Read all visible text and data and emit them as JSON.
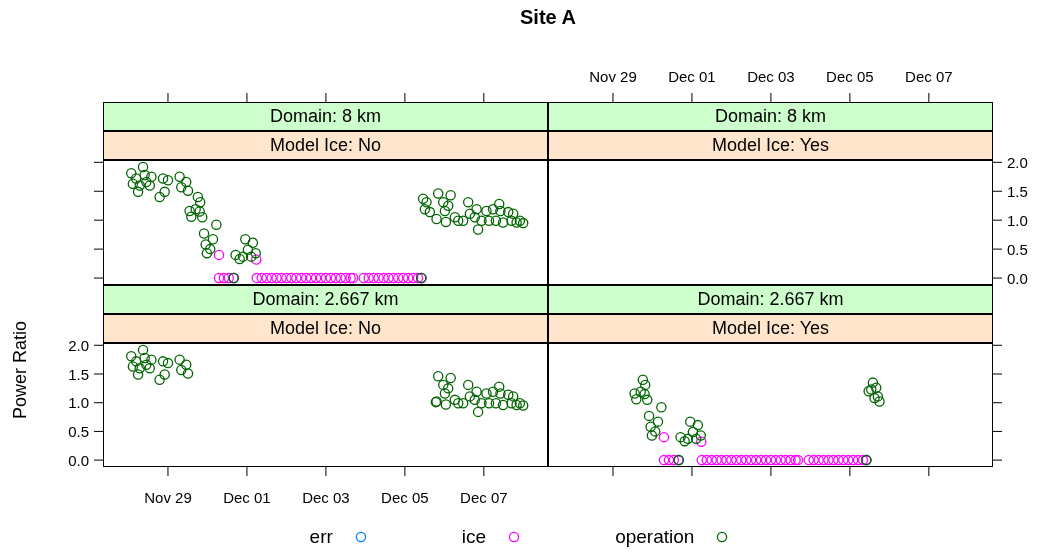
{
  "chart_data": [
    {
      "type": "scatter",
      "title": "Domain: 8 km",
      "subtitle": "Model Ice: No",
      "annotations": [
        "Site A"
      ],
      "marker": "circle",
      "tick_labels": false,
      "legend": "bottom",
      "xlim": [
        "--11-27T08:30",
        "--12-08T15:00"
      ],
      "xticks": [
        {
          "value": "--11-29",
          "label": "Nov 29"
        },
        {
          "value": "--12-01",
          "label": "Dec 01"
        },
        {
          "value": "--12-03",
          "label": "Dec 03"
        },
        {
          "value": "--12-05",
          "label": "Dec 05"
        },
        {
          "value": "--12-07",
          "label": "Dec 07"
        }
      ],
      "ylim": [
        -0.12,
        2.04
      ],
      "yticks": [
        {
          "value": 0,
          "label": "0.0"
        },
        {
          "value": 0.5,
          "label": "0.5"
        },
        {
          "value": 1,
          "label": "1.0"
        },
        {
          "value": 1.5,
          "label": "1.5"
        },
        {
          "value": 2,
          "label": "2.0"
        }
      ],
      "series": [
        {
          "name": "err",
          "color": "#0080ff",
          "x": [
            "--11-30T15:55",
            "--12-05T10:00"
          ],
          "values": [
            0,
            0
          ]
        },
        {
          "name": "ice",
          "color": "#ff00ff",
          "x": [
            "--11-30T07:00",
            "--12-01T05:40",
            "--11-30T07:00",
            "--11-30T10:00",
            "--11-30T13:00",
            "--11-30T16:00",
            "--12-01T06:00",
            "--12-01T09:00",
            "--12-01T12:00",
            "--12-01T15:00",
            "--12-01T18:00",
            "--12-01T21:00",
            "--12-02T00:00",
            "--12-02T03:00",
            "--12-02T06:00",
            "--12-02T09:00",
            "--12-02T12:00",
            "--12-02T15:00",
            "--12-02T18:00",
            "--12-02T21:00",
            "--12-03T00:00",
            "--12-03T03:00",
            "--12-03T06:00",
            "--12-03T09:00",
            "--12-03T12:00",
            "--12-03T15:00",
            "--12-03T16:30",
            "--12-03T23:00",
            "--12-04T02:00",
            "--12-04T05:00",
            "--12-04T08:00",
            "--12-04T11:00",
            "--12-04T14:00",
            "--12-04T17:00",
            "--12-04T20:00",
            "--12-04T23:00",
            "--12-05T02:00",
            "--12-05T05:00",
            "--12-05T08:00",
            "--12-05T10:00"
          ],
          "values": [
            0.4,
            0.32,
            0,
            0,
            0,
            0,
            0,
            0,
            0,
            0,
            0,
            0,
            0,
            0,
            0,
            0,
            0,
            0,
            0,
            0,
            0,
            0,
            0,
            0,
            0,
            0,
            0,
            0,
            0,
            0,
            0,
            0,
            0,
            0,
            0,
            0,
            0,
            0,
            0,
            0
          ]
        },
        {
          "name": "operation",
          "color": "#006400",
          "x": [
            "--11-28T01:40",
            "--11-28T02:40",
            "--11-28T04:40",
            "--11-28T05:50",
            "--11-28T06:50",
            "--11-28T08:50",
            "--11-28T09:50",
            "--11-28T10:50",
            "--11-28T12:55",
            "--11-28T13:55",
            "--11-28T18:55",
            "--11-28T21:00",
            "--11-28T22:00",
            "--11-29T00:00",
            "--11-29T07:05",
            "--11-29T08:05",
            "--11-29T11:05",
            "--11-29T12:10",
            "--11-29T18:10",
            "--11-29T19:35",
            "--11-29T13:10",
            "--11-29T14:10",
            "--11-29T16:50",
            "--11-29T19:15",
            "--11-29T20:50",
            "--11-30T05:25",
            "--11-29T21:55",
            "--11-30T03:20",
            "--11-29T22:55",
            "--11-30T01:40",
            "--11-29T23:40",
            "--11-30T17:05",
            "--11-30T19:35",
            "--11-30T23:00",
            "--12-01T00:35",
            "--12-01T03:35",
            "--12-01T05:20",
            "--11-30T21:35",
            "--12-01T02:35",
            "--11-30T15:55",
            "--12-05T10:00",
            "--12-05T11:05",
            "--12-05T12:10",
            "--12-05T13:10",
            "--12-05T15:10",
            "--12-05T19:15",
            "--12-05T20:15",
            "--12-05T23:20",
            "--12-06T00:20",
            "--12-06T02:20",
            "--12-06T03:50",
            "--12-06T00:55",
            "--12-06T06:25",
            "--12-06T08:25",
            "--12-06T11:25",
            "--12-06T14:30",
            "--12-06T15:30",
            "--12-06T18:30",
            "--12-06T19:35",
            "--12-06T20:30",
            "--12-06T22:35",
            "--12-07T01:35",
            "--12-07T03:10",
            "--12-07T05:35",
            "--12-07T07:20",
            "--12-07T09:20",
            "--12-07T10:05",
            "--12-07T11:40",
            "--12-07T14:50",
            "--12-07T16:50",
            "--12-07T17:50",
            "--12-07T19:55",
            "--12-07T21:55",
            "--12-07T23:55"
          ],
          "values": [
            1.81,
            1.63,
            1.72,
            1.49,
            1.6,
            1.92,
            1.78,
            1.66,
            1.6,
            1.75,
            1.4,
            1.72,
            1.49,
            1.69,
            1.75,
            1.57,
            1.66,
            1.51,
            1.4,
            1.31,
            1.16,
            1.06,
            1.19,
            1.15,
            1.05,
            0.92,
            0.77,
            0.67,
            0.58,
            0.5,
            0.43,
            0.4,
            0.33,
            0.67,
            0.49,
            0.61,
            0.43,
            0.37,
            0.37,
            0,
            0,
            1.37,
            1.19,
            1.31,
            1.14,
            1.02,
            1.46,
            1.31,
            1.16,
            1.25,
            1.43,
            0.97,
            1.05,
            0.99,
            0.99,
            1.31,
            1.11,
            1.05,
            1.19,
            0.84,
            0.99,
            1.16,
            0.99,
            1.19,
            0.99,
            1.28,
            1.16,
            0.96,
            1.14,
            0.99,
            1.11,
            0.96,
            0.99,
            0.95
          ]
        }
      ]
    },
    {
      "type": "scatter",
      "title": "Domain: 8 km",
      "subtitle": "Model Ice: Yes",
      "xlim": [
        "--11-27T08:30",
        "--12-08T15:00"
      ],
      "xticks": [
        {
          "value": "--11-29",
          "label": "Nov 29"
        },
        {
          "value": "--12-01",
          "label": "Dec 01"
        },
        {
          "value": "--12-03",
          "label": "Dec 03"
        },
        {
          "value": "--12-05",
          "label": "Dec 05"
        },
        {
          "value": "--12-07",
          "label": "Dec 07"
        }
      ],
      "ylim": [
        -0.12,
        2.04
      ],
      "yticks": [
        {
          "value": 0,
          "label": "0.0"
        },
        {
          "value": 0.5,
          "label": "0.5"
        },
        {
          "value": 1,
          "label": "1.0"
        },
        {
          "value": 1.5,
          "label": "1.5"
        },
        {
          "value": 2,
          "label": "2.0"
        }
      ]
    },
    {
      "type": "scatter",
      "title": "Domain: 2.667 km",
      "subtitle": "Model Ice: No",
      "ylabel": "Power Ratio",
      "marker": "circle",
      "xlim": [
        "--11-27T08:30",
        "--12-08T15:00"
      ],
      "xticks": [
        {
          "value": "--11-29",
          "label": "Nov 29"
        },
        {
          "value": "--12-01",
          "label": "Dec 01"
        },
        {
          "value": "--12-03",
          "label": "Dec 03"
        },
        {
          "value": "--12-05",
          "label": "Dec 05"
        },
        {
          "value": "--12-07",
          "label": "Dec 07"
        }
      ],
      "ylim": [
        -0.12,
        2.04
      ],
      "yticks": [
        {
          "value": 0,
          "label": "0.0"
        },
        {
          "value": 0.5,
          "label": "0.5"
        },
        {
          "value": 1,
          "label": "1.0"
        },
        {
          "value": 1.5,
          "label": "1.5"
        },
        {
          "value": 2,
          "label": "2.0"
        }
      ],
      "series": [
        {
          "color": "#006400",
          "x": [
            "--11-28T01:40",
            "--11-28T02:40",
            "--11-28T04:40",
            "--11-28T05:50",
            "--11-28T06:50",
            "--11-28T08:50",
            "--11-28T09:50",
            "--11-28T10:50",
            "--11-28T12:55",
            "--11-28T13:55",
            "--11-28T18:55",
            "--11-28T21:00",
            "--11-28T22:00",
            "--11-29T00:00",
            "--11-29T07:05",
            "--11-29T08:05",
            "--11-29T11:05",
            "--11-29T12:10",
            "--12-05T18:50",
            "--12-05T19:15",
            "--12-05T20:15",
            "--12-05T23:20",
            "--12-06T00:20",
            "--12-06T02:20",
            "--12-06T03:50",
            "--12-06T00:55",
            "--12-06T06:25",
            "--12-06T08:25",
            "--12-06T11:25",
            "--12-06T14:30",
            "--12-06T15:30",
            "--12-06T18:30",
            "--12-06T19:35",
            "--12-06T20:30",
            "--12-06T22:35",
            "--12-07T01:35",
            "--12-07T03:10",
            "--12-07T05:35",
            "--12-07T07:20",
            "--12-07T09:20",
            "--12-07T10:05",
            "--12-07T11:40",
            "--12-07T14:50",
            "--12-07T16:50",
            "--12-07T17:50",
            "--12-07T19:55",
            "--12-07T21:55",
            "--12-07T23:55"
          ],
          "values": [
            1.81,
            1.63,
            1.72,
            1.49,
            1.6,
            1.92,
            1.78,
            1.66,
            1.6,
            1.75,
            1.4,
            1.72,
            1.49,
            1.69,
            1.75,
            1.57,
            1.66,
            1.51,
            1.01,
            1.02,
            1.46,
            1.31,
            1.16,
            1.25,
            1.43,
            0.97,
            1.05,
            0.99,
            0.99,
            1.31,
            1.11,
            1.05,
            1.19,
            0.84,
            0.99,
            1.16,
            0.99,
            1.19,
            0.99,
            1.28,
            1.16,
            0.96,
            1.14,
            0.99,
            1.11,
            0.96,
            0.99,
            0.95
          ]
        }
      ]
    },
    {
      "type": "scatter",
      "title": "Domain: 2.667 km",
      "subtitle": "Model Ice: Yes",
      "marker": "circle",
      "tick_labels": false,
      "xlim": [
        "--11-27T08:30",
        "--12-08T15:00"
      ],
      "xticks": [
        {
          "value": "--11-29",
          "label": "Nov 29"
        },
        {
          "value": "--12-01",
          "label": "Dec 01"
        },
        {
          "value": "--12-03",
          "label": "Dec 03"
        },
        {
          "value": "--12-05",
          "label": "Dec 05"
        },
        {
          "value": "--12-07",
          "label": "Dec 07"
        }
      ],
      "ylim": [
        -0.12,
        2.04
      ],
      "yticks": [
        {
          "value": 0,
          "label": "0.0"
        },
        {
          "value": 0.5,
          "label": "0.5"
        },
        {
          "value": 1,
          "label": "1.0"
        },
        {
          "value": 1.5,
          "label": "1.5"
        },
        {
          "value": 2,
          "label": "2.0"
        }
      ],
      "series": [
        {
          "color": "#0080ff",
          "x": [
            "--11-30T15:55",
            "--12-05T10:00"
          ],
          "values": [
            0,
            0
          ]
        },
        {
          "color": "#ff00ff",
          "x": [
            "--11-30T07:00",
            "--12-01T05:40",
            "--11-30T07:00",
            "--11-30T10:00",
            "--11-30T13:00",
            "--11-30T16:00",
            "--12-01T06:00",
            "--12-01T09:00",
            "--12-01T12:00",
            "--12-01T15:00",
            "--12-01T18:00",
            "--12-01T21:00",
            "--12-02T00:00",
            "--12-02T03:00",
            "--12-02T06:00",
            "--12-02T09:00",
            "--12-02T12:00",
            "--12-02T15:00",
            "--12-02T18:00",
            "--12-02T21:00",
            "--12-03T00:00",
            "--12-03T03:00",
            "--12-03T06:00",
            "--12-03T09:00",
            "--12-03T12:00",
            "--12-03T15:00",
            "--12-03T16:30",
            "--12-03T23:00",
            "--12-04T02:00",
            "--12-04T05:00",
            "--12-04T08:00",
            "--12-04T11:00",
            "--12-04T14:00",
            "--12-04T17:00",
            "--12-04T20:00",
            "--12-04T23:00",
            "--12-05T02:00",
            "--12-05T05:00",
            "--12-05T08:00",
            "--12-05T10:00"
          ],
          "values": [
            0.4,
            0.32,
            0,
            0,
            0,
            0,
            0,
            0,
            0,
            0,
            0,
            0,
            0,
            0,
            0,
            0,
            0,
            0,
            0,
            0,
            0,
            0,
            0,
            0,
            0,
            0,
            0,
            0,
            0,
            0,
            0,
            0,
            0,
            0,
            0,
            0,
            0,
            0,
            0,
            0
          ]
        },
        {
          "color": "#006400",
          "x": [
            "--11-29T18:10",
            "--11-29T19:35",
            "--11-29T13:10",
            "--11-29T14:10",
            "--11-29T16:50",
            "--11-29T19:15",
            "--11-29T20:50",
            "--11-30T05:25",
            "--11-29T21:55",
            "--11-30T03:20",
            "--11-29T22:55",
            "--11-30T01:40",
            "--11-29T23:40",
            "--11-30T17:05",
            "--11-30T19:35",
            "--11-30T23:00",
            "--12-01T00:35",
            "--12-01T03:35",
            "--12-01T05:20",
            "--11-30T21:35",
            "--12-01T02:35",
            "--11-30T15:55",
            "--12-05T10:00",
            "--12-05T11:25",
            "--12-05T14:00",
            "--12-05T16:00",
            "--12-05T13:00",
            "--12-05T17:00",
            "--12-05T18:00",
            "--12-05T15:00"
          ],
          "values": [
            1.4,
            1.31,
            1.16,
            1.06,
            1.19,
            1.15,
            1.05,
            0.92,
            0.77,
            0.67,
            0.58,
            0.5,
            0.43,
            0.4,
            0.33,
            0.67,
            0.49,
            0.61,
            0.43,
            0.37,
            0.37,
            0,
            0,
            1.2,
            1.35,
            1.26,
            1.23,
            1.11,
            1.02,
            1.08
          ]
        }
      ]
    }
  ]
}
